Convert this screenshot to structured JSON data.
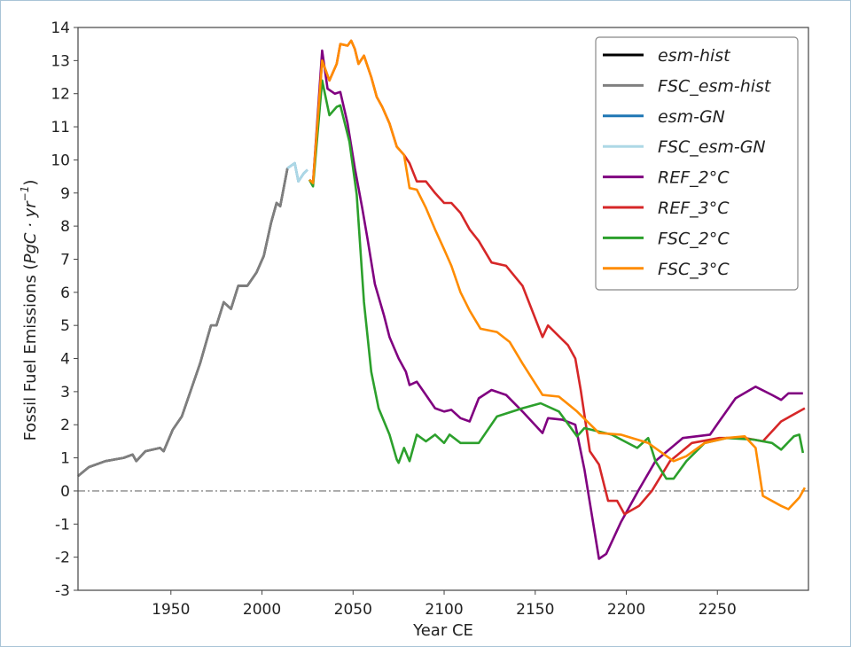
{
  "chart_data": {
    "type": "line",
    "xlabel": "Year CE",
    "ylabel": {
      "prefix": "Fossil Fuel Emissions (",
      "unit_main": "PgC · yr",
      "unit_exp": "−1",
      "suffix": ")"
    },
    "xlim": [
      1899,
      2300
    ],
    "ylim": [
      -3,
      14
    ],
    "xticks": [
      1950,
      2000,
      2050,
      2100,
      2150,
      2200,
      2250
    ],
    "yticks": [
      -3,
      -2,
      -1,
      0,
      1,
      2,
      3,
      4,
      5,
      6,
      7,
      8,
      9,
      10,
      11,
      12,
      13,
      14
    ],
    "grid": false,
    "legend_position": "top-right",
    "reference_line": {
      "y": 0,
      "style": "dash-dot",
      "color": "#888888"
    },
    "series": [
      {
        "name": "esm-hist",
        "color": "#000000",
        "x": [
          1899,
          1905,
          1914,
          1924,
          1929,
          1931,
          1936,
          1944,
          1946,
          1951,
          1956,
          1961,
          1966,
          1972,
          1975,
          1979,
          1983,
          1987,
          1992,
          1997,
          2001,
          2005,
          2008,
          2010,
          2014
        ],
        "y": [
          0.45,
          0.72,
          0.9,
          1.0,
          1.1,
          0.9,
          1.2,
          1.3,
          1.2,
          1.85,
          2.25,
          3.05,
          3.85,
          5.0,
          5.0,
          5.7,
          5.5,
          6.2,
          6.2,
          6.6,
          7.1,
          8.1,
          8.7,
          8.6,
          9.75
        ]
      },
      {
        "name": "FSC_esm-hist",
        "color": "#7f7f7f",
        "x": [
          1899,
          1905,
          1914,
          1924,
          1929,
          1931,
          1936,
          1944,
          1946,
          1951,
          1956,
          1961,
          1966,
          1972,
          1975,
          1979,
          1983,
          1987,
          1992,
          1997,
          2001,
          2005,
          2008,
          2010,
          2014
        ],
        "y": [
          0.45,
          0.72,
          0.9,
          1.0,
          1.1,
          0.9,
          1.2,
          1.3,
          1.2,
          1.85,
          2.25,
          3.05,
          3.85,
          5.0,
          5.0,
          5.7,
          5.5,
          6.2,
          6.2,
          6.6,
          7.1,
          8.1,
          8.7,
          8.6,
          9.75
        ]
      },
      {
        "name": "esm-GN",
        "color": "#1f77b4",
        "x": [
          2014,
          2018,
          2020,
          2023,
          2025
        ],
        "y": [
          9.75,
          9.9,
          9.35,
          9.6,
          9.7
        ]
      },
      {
        "name": "FSC_esm-GN",
        "color": "#add8e6",
        "x": [
          2014,
          2018,
          2020,
          2023,
          2025
        ],
        "y": [
          9.75,
          9.9,
          9.35,
          9.6,
          9.7
        ]
      },
      {
        "name": "REF_2°C",
        "color": "#800080",
        "x": [
          2026,
          2028,
          2033,
          2036,
          2040,
          2043,
          2047,
          2051,
          2055,
          2058,
          2062,
          2067,
          2070,
          2075,
          2079,
          2081,
          2085,
          2090,
          2095,
          2100,
          2104,
          2109,
          2114,
          2119,
          2126,
          2134,
          2143,
          2154,
          2157,
          2165,
          2172,
          2177,
          2185,
          2189,
          2197,
          2207,
          2216,
          2231,
          2246,
          2251,
          2260,
          2271,
          2280,
          2285,
          2289,
          2297
        ],
        "y": [
          9.4,
          9.3,
          13.3,
          12.15,
          12.0,
          12.05,
          11.1,
          9.75,
          8.55,
          7.6,
          6.25,
          5.3,
          4.65,
          4.0,
          3.6,
          3.2,
          3.3,
          2.9,
          2.5,
          2.4,
          2.45,
          2.2,
          2.1,
          2.8,
          3.05,
          2.9,
          2.4,
          1.75,
          2.2,
          2.15,
          2.0,
          0.65,
          -2.05,
          -1.9,
          -0.95,
          0.05,
          0.9,
          1.6,
          1.7,
          2.1,
          2.8,
          3.15,
          2.9,
          2.75,
          2.95,
          2.95
        ]
      },
      {
        "name": "REF_3°C",
        "color": "#d62728",
        "x": [
          2026,
          2028,
          2033,
          2037,
          2041,
          2043,
          2047,
          2049,
          2051,
          2053,
          2056,
          2060,
          2063,
          2066,
          2070,
          2074,
          2078,
          2081,
          2085,
          2090,
          2095,
          2100,
          2104,
          2109,
          2114,
          2119,
          2126,
          2134,
          2143,
          2154,
          2157,
          2168,
          2172,
          2175,
          2180,
          2185,
          2190,
          2195,
          2199,
          2207,
          2214,
          2224,
          2236,
          2251,
          2265,
          2275,
          2285,
          2298
        ],
        "y": [
          9.4,
          9.3,
          13.0,
          12.4,
          12.9,
          13.5,
          13.45,
          13.6,
          13.35,
          12.9,
          13.15,
          12.5,
          11.9,
          11.6,
          11.1,
          10.4,
          10.15,
          9.9,
          9.35,
          9.35,
          9.0,
          8.7,
          8.7,
          8.4,
          7.9,
          7.55,
          6.9,
          6.8,
          6.2,
          4.65,
          5.0,
          4.4,
          4.0,
          3.05,
          1.2,
          0.8,
          -0.3,
          -0.3,
          -0.7,
          -0.45,
          0.0,
          0.9,
          1.45,
          1.6,
          1.6,
          1.5,
          2.1,
          2.5
        ]
      },
      {
        "name": "FSC_2°C",
        "color": "#2ca02c",
        "x": [
          2026,
          2028,
          2033,
          2037,
          2041,
          2043,
          2048,
          2052,
          2056,
          2060,
          2064,
          2070,
          2074,
          2075,
          2078,
          2081,
          2085,
          2090,
          2095,
          2100,
          2103,
          2109,
          2119,
          2129,
          2143,
          2153,
          2163,
          2173,
          2177,
          2192,
          2206,
          2212,
          2216,
          2222,
          2226,
          2233,
          2243,
          2255,
          2270,
          2280,
          2285,
          2292,
          2295,
          2297
        ],
        "y": [
          9.4,
          9.2,
          12.4,
          11.35,
          11.6,
          11.65,
          10.55,
          8.95,
          5.7,
          3.6,
          2.5,
          1.7,
          0.95,
          0.85,
          1.3,
          0.9,
          1.7,
          1.5,
          1.7,
          1.45,
          1.7,
          1.45,
          1.45,
          2.25,
          2.5,
          2.65,
          2.4,
          1.65,
          1.9,
          1.7,
          1.3,
          1.6,
          0.9,
          0.37,
          0.37,
          0.9,
          1.45,
          1.6,
          1.55,
          1.45,
          1.25,
          1.65,
          1.7,
          1.15
        ]
      },
      {
        "name": "FSC_3°C",
        "color": "#ff8c00",
        "x": [
          2026,
          2028,
          2033,
          2037,
          2041,
          2043,
          2047,
          2049,
          2051,
          2053,
          2056,
          2060,
          2063,
          2066,
          2070,
          2074,
          2078,
          2081,
          2085,
          2090,
          2095,
          2100,
          2104,
          2109,
          2114,
          2120,
          2129,
          2136,
          2143,
          2154,
          2163,
          2173,
          2185,
          2197,
          2212,
          2226,
          2233,
          2243,
          2255,
          2265,
          2271,
          2275,
          2285,
          2289,
          2295,
          2298
        ],
        "y": [
          9.4,
          9.3,
          13.0,
          12.4,
          12.9,
          13.5,
          13.45,
          13.6,
          13.35,
          12.9,
          13.15,
          12.5,
          11.9,
          11.6,
          11.1,
          10.4,
          10.15,
          9.15,
          9.1,
          8.55,
          7.9,
          7.3,
          6.8,
          6.0,
          5.45,
          4.9,
          4.8,
          4.5,
          3.85,
          2.9,
          2.85,
          2.4,
          1.75,
          1.7,
          1.45,
          0.9,
          1.05,
          1.45,
          1.6,
          1.65,
          1.3,
          -0.15,
          -0.45,
          -0.55,
          -0.2,
          0.1
        ]
      }
    ]
  }
}
